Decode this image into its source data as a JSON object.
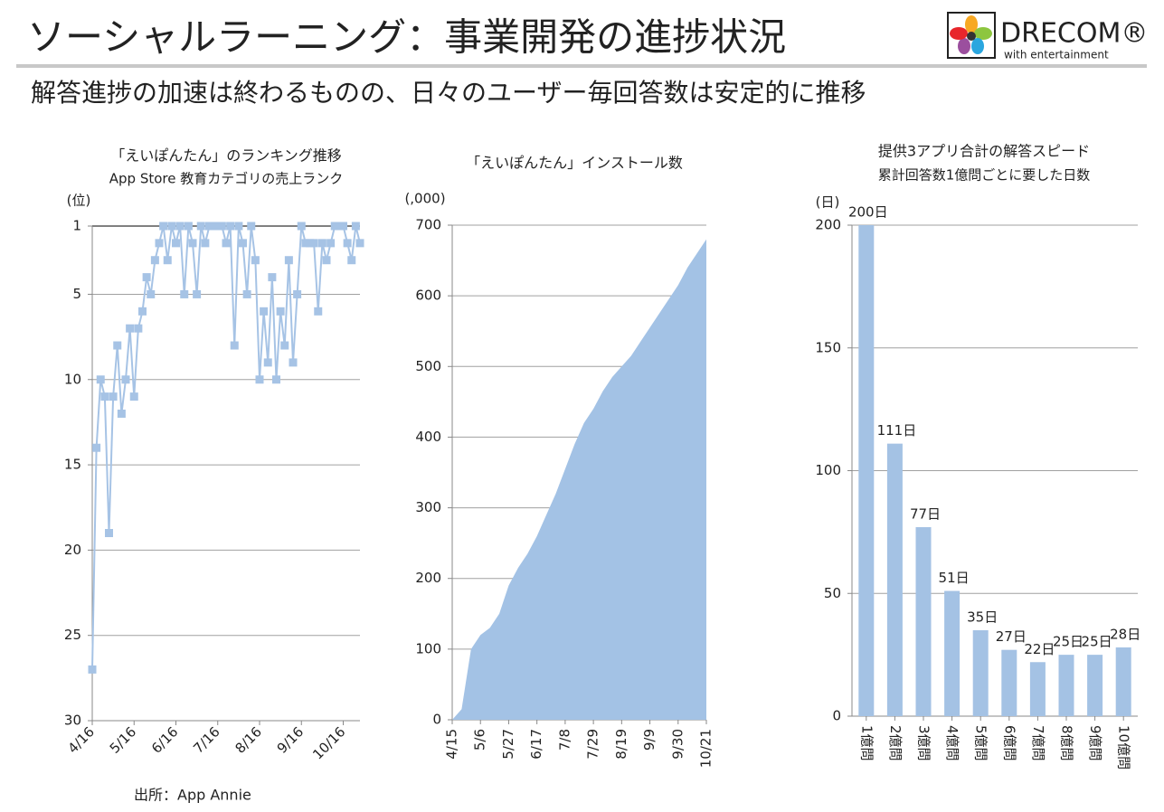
{
  "header": {
    "title": "ソーシャルラーニング：事業開発の進捗状況",
    "subtitle": "解答進捗の加速は終わるものの、日々のユーザー毎回答数は安定的に推移",
    "logo": {
      "name": "DRECOM®",
      "tagline": "with entertainment"
    }
  },
  "source": "出所：App Annie",
  "chart_data": [
    {
      "type": "line",
      "title": "「えいぽんたん」のランキング推移",
      "subtitle": "App Store 教育カテゴリの売上ランク",
      "ylabel": "(位)",
      "categories": [
        "4/16",
        null,
        null,
        null,
        null,
        null,
        null,
        null,
        null,
        null,
        "5/16",
        null,
        null,
        null,
        null,
        null,
        null,
        null,
        null,
        null,
        "6/16",
        null,
        null,
        null,
        null,
        null,
        null,
        null,
        null,
        null,
        "7/16",
        null,
        null,
        null,
        null,
        null,
        null,
        null,
        null,
        null,
        "8/16",
        null,
        null,
        null,
        null,
        null,
        null,
        null,
        null,
        null,
        "9/16",
        null,
        null,
        null,
        null,
        null,
        null,
        null,
        null,
        null,
        "10/16",
        null,
        null,
        null,
        null
      ],
      "values": [
        27,
        14,
        10,
        11,
        19,
        11,
        8,
        12,
        10,
        7,
        11,
        7,
        6,
        4,
        5,
        3,
        2,
        1,
        3,
        1,
        2,
        1,
        5,
        1,
        2,
        5,
        1,
        2,
        1,
        1,
        1,
        1,
        2,
        1,
        8,
        1,
        2,
        5,
        1,
        3,
        10,
        6,
        9,
        4,
        10,
        6,
        8,
        3,
        9,
        5,
        1,
        2,
        2,
        2,
        6,
        2,
        3,
        2,
        1,
        1,
        1,
        2,
        3,
        1,
        2
      ],
      "color": "#a6c3e5",
      "markers": "square",
      "ylim": [
        1,
        30
      ],
      "y_inverted": true,
      "yticks": [
        1,
        5,
        10,
        15,
        20,
        25,
        30
      ],
      "grid": true
    },
    {
      "type": "area",
      "title": "「えいぽんたん」インストール数",
      "ylabel": "(,000)",
      "categories": [
        "4/15",
        null,
        null,
        "5/6",
        null,
        null,
        "5/27",
        null,
        null,
        "6/17",
        null,
        null,
        "7/8",
        null,
        null,
        "7/29",
        null,
        null,
        "8/19",
        null,
        null,
        "9/9",
        null,
        null,
        "9/30",
        null,
        null,
        "10/21"
      ],
      "values": [
        0,
        15,
        100,
        120,
        130,
        150,
        190,
        215,
        235,
        260,
        290,
        320,
        355,
        390,
        420,
        440,
        465,
        485,
        500,
        515,
        535,
        555,
        575,
        595,
        615,
        640,
        660,
        680
      ],
      "color": "#a3c2e5",
      "ylim": [
        0,
        700
      ],
      "yticks": [
        0,
        100,
        200,
        300,
        400,
        500,
        600,
        700
      ],
      "grid": true
    },
    {
      "type": "bar",
      "title": "提供3アプリ合計の解答スピード",
      "subtitle": "累計回答数1億問ごとに要した日数",
      "ylabel": "(日)",
      "categories": [
        "1億問",
        "2億問",
        "3億問",
        "4億問",
        "5億問",
        "6億問",
        "7億問",
        "8億問",
        "9億問",
        "10億問"
      ],
      "values": [
        200,
        111,
        77,
        51,
        35,
        27,
        22,
        25,
        25,
        28
      ],
      "value_labels": [
        "200日",
        "111日",
        "77日",
        "51日",
        "35日",
        "27日",
        "22日",
        "25日",
        "25日",
        "28日"
      ],
      "color": "#a4c2e4",
      "ylim": [
        0,
        200
      ],
      "yticks": [
        0,
        50,
        100,
        150,
        200
      ],
      "grid": true
    }
  ]
}
